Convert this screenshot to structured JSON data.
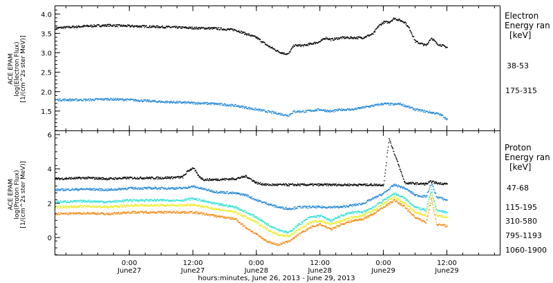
{
  "figure": {
    "xaxis_label": "hours:minutes, June 26, 2013 - June 29, 2013",
    "xticks": [
      {
        "t": 24,
        "top": "0:00",
        "bottom": "June27"
      },
      {
        "t": 36,
        "top": "12:00",
        "bottom": "June27"
      },
      {
        "t": 48,
        "top": "0:00",
        "bottom": "June28"
      },
      {
        "t": 60,
        "top": "12:00",
        "bottom": "June28"
      },
      {
        "t": 72,
        "top": "0:00",
        "bottom": "June29"
      },
      {
        "t": 84,
        "top": "12:00",
        "bottom": "June29"
      }
    ]
  },
  "colors": {
    "frame": "#000000",
    "black": "#000000",
    "blue": "#1f86d4",
    "cyan": "#2ce0d6",
    "yellow": "#ecec1e",
    "orange": "#f08a12"
  },
  "panels": {
    "electron": {
      "ylabel_lines": [
        "ACE EPAM",
        "log(Electron Flux)",
        "[1/(cm^2s ster MeV)]"
      ],
      "legend_title_lines": [
        "Electron",
        "Energy ran",
        "[keV]"
      ],
      "legend_entries": [
        {
          "label": "38-53",
          "color": "#000000"
        },
        {
          "label": "175-315",
          "color": "#1f86d4"
        }
      ]
    },
    "proton": {
      "ylabel_lines": [
        "ACE EPAM",
        "log(Proton Flux)",
        "[1/(cm^2s ster MeV)]"
      ],
      "legend_title_lines": [
        "Proton",
        "Energy ran",
        "[keV]"
      ],
      "legend_entries": [
        {
          "label": "47-68",
          "color": "#000000"
        },
        {
          "label": "115-195",
          "color": "#1f86d4"
        },
        {
          "label": "310-580",
          "color": "#2ce0d6"
        },
        {
          "label": "795-1193",
          "color": "#ecec1e"
        },
        {
          "label": "1060-1900",
          "color": "#f08a12"
        }
      ]
    }
  },
  "chart_data": [
    {
      "type": "scatter",
      "title": "",
      "xlabel": "hours:minutes, June 26, 2013 - June 29, 2013",
      "ylabel": "ACE EPAM log(Electron Flux) [1/(cm^2s ster MeV)]",
      "x_units": "hours since June 26, 2013 00:00",
      "xlim": [
        10,
        94
      ],
      "ylim": [
        1.0,
        4.2
      ],
      "yticks": [
        1.5,
        2.0,
        2.5,
        3.0,
        3.5,
        4.0
      ],
      "grid": false,
      "legend_position": "right",
      "series": [
        {
          "name": "38-53",
          "color": "#000000",
          "x": [
            10,
            16,
            20,
            24,
            30,
            36,
            40,
            44,
            46,
            48,
            50,
            52,
            53,
            54,
            55,
            57,
            60,
            61,
            62,
            64,
            66,
            68,
            70,
            71,
            72,
            73,
            74,
            75,
            76,
            77,
            78,
            79,
            80,
            81,
            82,
            83,
            84
          ],
          "y": [
            3.65,
            3.7,
            3.72,
            3.7,
            3.68,
            3.65,
            3.64,
            3.6,
            3.5,
            3.4,
            3.2,
            3.05,
            3.0,
            2.98,
            3.2,
            3.2,
            3.3,
            3.4,
            3.35,
            3.4,
            3.4,
            3.4,
            3.5,
            3.7,
            3.8,
            3.8,
            3.9,
            3.85,
            3.8,
            3.6,
            3.3,
            3.25,
            3.2,
            3.4,
            3.25,
            3.2,
            3.15
          ]
        },
        {
          "name": "175-315",
          "color": "#1f86d4",
          "x": [
            10,
            16,
            20,
            24,
            30,
            36,
            40,
            44,
            46,
            48,
            50,
            52,
            53,
            54,
            55,
            57,
            60,
            62,
            64,
            66,
            68,
            70,
            72,
            74,
            75,
            76,
            78,
            80,
            82,
            83,
            84
          ],
          "y": [
            1.8,
            1.8,
            1.82,
            1.8,
            1.75,
            1.72,
            1.7,
            1.65,
            1.6,
            1.55,
            1.5,
            1.45,
            1.42,
            1.4,
            1.5,
            1.5,
            1.55,
            1.5,
            1.55,
            1.55,
            1.6,
            1.65,
            1.7,
            1.68,
            1.7,
            1.65,
            1.55,
            1.5,
            1.45,
            1.4,
            1.3
          ]
        }
      ]
    },
    {
      "type": "scatter",
      "title": "",
      "xlabel": "hours:minutes, June 26, 2013 - June 29, 2013",
      "ylabel": "ACE EPAM log(Proton Flux) [1/(cm^2s ster MeV)]",
      "x_units": "hours since June 26, 2013 00:00",
      "xlim": [
        10,
        94
      ],
      "ylim": [
        -1.0,
        6.2
      ],
      "yticks": [
        0,
        2,
        4,
        6
      ],
      "grid": false,
      "legend_position": "right",
      "series": [
        {
          "name": "47-68",
          "color": "#000000",
          "x": [
            10,
            16,
            20,
            24,
            30,
            34,
            35,
            36,
            37,
            38,
            40,
            44,
            46,
            47,
            48,
            50,
            54,
            60,
            66,
            72,
            73,
            76,
            80,
            81,
            82,
            84
          ],
          "y": [
            3.45,
            3.5,
            3.45,
            3.5,
            3.5,
            3.55,
            3.9,
            4.1,
            3.6,
            3.4,
            3.4,
            3.45,
            3.6,
            3.4,
            3.2,
            3.1,
            3.1,
            3.1,
            3.1,
            3.1,
            5.8,
            3.2,
            3.15,
            3.3,
            3.2,
            3.15
          ]
        },
        {
          "name": "115-195",
          "color": "#1f86d4",
          "x": [
            10,
            16,
            20,
            24,
            30,
            34,
            36,
            40,
            44,
            46,
            48,
            50,
            52,
            54,
            56,
            60,
            64,
            68,
            70,
            72,
            74,
            76,
            78,
            80,
            81,
            82,
            84
          ],
          "y": [
            2.8,
            2.85,
            2.8,
            2.9,
            2.9,
            2.9,
            3.0,
            2.7,
            2.6,
            2.5,
            2.2,
            2.0,
            1.8,
            1.7,
            1.8,
            1.8,
            1.8,
            2.0,
            2.3,
            2.6,
            3.1,
            2.9,
            2.5,
            2.4,
            3.2,
            2.4,
            2.2
          ]
        },
        {
          "name": "310-580",
          "color": "#2ce0d6",
          "x": [
            10,
            16,
            20,
            24,
            30,
            34,
            36,
            40,
            44,
            46,
            48,
            50,
            52,
            54,
            56,
            58,
            60,
            62,
            64,
            66,
            68,
            70,
            72,
            74,
            76,
            78,
            80,
            81,
            82,
            84
          ],
          "y": [
            2.1,
            2.15,
            2.1,
            2.2,
            2.2,
            2.2,
            2.3,
            2.0,
            1.8,
            1.5,
            1.2,
            0.8,
            0.5,
            0.3,
            0.8,
            1.2,
            1.3,
            1.0,
            1.3,
            1.5,
            1.5,
            1.8,
            2.2,
            2.6,
            2.3,
            1.8,
            1.6,
            2.8,
            1.6,
            1.5
          ]
        },
        {
          "name": "795-1193",
          "color": "#ecec1e",
          "x": [
            10,
            16,
            20,
            24,
            30,
            34,
            36,
            40,
            44,
            46,
            48,
            50,
            52,
            54,
            56,
            58,
            60,
            62,
            64,
            66,
            68,
            70,
            72,
            74,
            76,
            78,
            80,
            81,
            82,
            84
          ],
          "y": [
            1.8,
            1.85,
            1.8,
            1.9,
            1.9,
            1.9,
            1.95,
            1.7,
            1.5,
            1.2,
            0.9,
            0.5,
            0.2,
            0.1,
            0.5,
            0.9,
            1.0,
            0.8,
            1.0,
            1.2,
            1.3,
            1.6,
            2.0,
            2.4,
            2.0,
            1.5,
            1.3,
            2.6,
            1.3,
            1.2
          ]
        },
        {
          "name": "1060-1900",
          "color": "#f08a12",
          "x": [
            10,
            16,
            20,
            24,
            30,
            34,
            36,
            40,
            44,
            46,
            48,
            50,
            52,
            54,
            56,
            58,
            60,
            62,
            64,
            66,
            68,
            70,
            72,
            74,
            76,
            78,
            80,
            81,
            82,
            84
          ],
          "y": [
            1.4,
            1.45,
            1.4,
            1.5,
            1.5,
            1.5,
            1.5,
            1.3,
            1.1,
            0.6,
            0.2,
            -0.2,
            -0.4,
            -0.2,
            0.2,
            0.6,
            0.8,
            0.5,
            0.8,
            1.0,
            1.1,
            1.4,
            1.8,
            2.2,
            1.8,
            1.2,
            0.9,
            2.3,
            0.8,
            0.7
          ]
        }
      ]
    }
  ]
}
